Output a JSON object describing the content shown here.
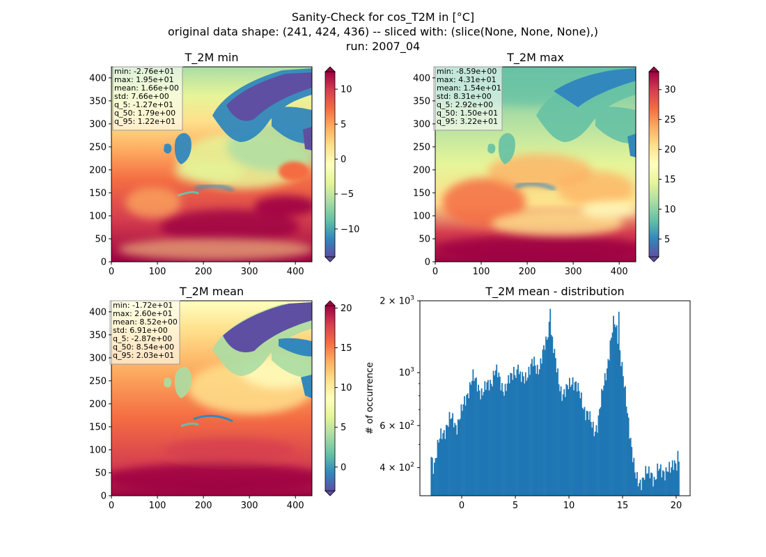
{
  "figure": {
    "title_lines": [
      "Sanity-Check for cos_T2M in [°C]",
      "original data shape: (241, 424, 436) -- sliced with: (slice(None, None, None),)",
      "run: 2007_04"
    ]
  },
  "chart_data": [
    {
      "type": "heatmap",
      "title": "T_2M min",
      "xlim": [
        0,
        436
      ],
      "ylim": [
        0,
        424
      ],
      "xticks": [
        0,
        100,
        200,
        300,
        400
      ],
      "yticks": [
        0,
        50,
        100,
        150,
        200,
        250,
        300,
        350,
        400
      ],
      "colormap": "Spectral_r",
      "extend": "both",
      "colorbar": {
        "range": [
          -14,
          12.5
        ],
        "ticks": [
          -10,
          -5,
          0,
          5,
          10
        ],
        "tick_labels": [
          "−10",
          "−5",
          "0",
          "5",
          "10"
        ]
      },
      "stats": [
        "min: -2.76e+01",
        "max: 1.95e+01",
        "mean: 1.66e+00",
        "std: 7.66e+00",
        "q_5: -1.27e+01",
        "q_50: 1.79e+00",
        "q_95: 1.22e+01"
      ]
    },
    {
      "type": "heatmap",
      "title": "T_2M max",
      "xlim": [
        0,
        436
      ],
      "ylim": [
        0,
        424
      ],
      "xticks": [
        0,
        100,
        200,
        300,
        400
      ],
      "yticks": [
        0,
        50,
        100,
        150,
        200,
        250,
        300,
        350,
        400
      ],
      "colormap": "Spectral_r",
      "extend": "both",
      "colorbar": {
        "range": [
          2,
          33
        ],
        "ticks": [
          5,
          10,
          15,
          20,
          25,
          30
        ],
        "tick_labels": [
          "5",
          "10",
          "15",
          "20",
          "25",
          "30"
        ]
      },
      "stats": [
        "min: -8.59e+00",
        "max: 4.31e+01",
        "mean: 1.54e+01",
        "std: 8.31e+00",
        "q_5: 2.92e+00",
        "q_50: 1.50e+01",
        "q_95: 3.22e+01"
      ]
    },
    {
      "type": "heatmap",
      "title": "T_2M mean",
      "xlim": [
        0,
        436
      ],
      "ylim": [
        0,
        424
      ],
      "xticks": [
        0,
        100,
        200,
        300,
        400
      ],
      "yticks": [
        0,
        50,
        100,
        150,
        200,
        250,
        300,
        350,
        400
      ],
      "colormap": "Spectral_r",
      "extend": "both",
      "colorbar": {
        "range": [
          -3,
          20.3
        ],
        "ticks": [
          0,
          5,
          10,
          15,
          20
        ],
        "tick_labels": [
          "0",
          "5",
          "10",
          "15",
          "20"
        ]
      },
      "stats": [
        "min: -1.72e+01",
        "max: 2.60e+01",
        "mean: 8.52e+00",
        "std: 6.91e+00",
        "q_5: -2.87e+00",
        "q_50: 8.54e+00",
        "q_95: 2.03e+01"
      ]
    },
    {
      "type": "bar",
      "title": "T_2M mean - distribution",
      "ylabel": "# of occurrence",
      "xlim": [
        -3.9,
        21.3
      ],
      "ylim": [
        305,
        2000
      ],
      "yscale": "log",
      "xticks": [
        0,
        5,
        10,
        15,
        20
      ],
      "yticks": [
        400,
        600,
        1000,
        2000
      ],
      "ytick_labels": [
        [
          "4",
          "2"
        ],
        [
          "6",
          "2"
        ],
        [
          "10",
          "3"
        ],
        [
          "2",
          "3"
        ]
      ],
      "bar_color": "#1f77b4",
      "bin_start": -2.9,
      "bin_width": 0.1,
      "anchors": [
        [
          -2.9,
          450
        ],
        [
          -2.6,
          410
        ],
        [
          -2.3,
          480
        ],
        [
          -2.0,
          530
        ],
        [
          -1.7,
          560
        ],
        [
          -1.4,
          610
        ],
        [
          -1.1,
          640
        ],
        [
          -0.8,
          620
        ],
        [
          -0.5,
          600
        ],
        [
          -0.2,
          660
        ],
        [
          0.1,
          700
        ],
        [
          0.4,
          780
        ],
        [
          0.7,
          880
        ],
        [
          1.0,
          960
        ],
        [
          1.3,
          900
        ],
        [
          1.6,
          870
        ],
        [
          1.9,
          830
        ],
        [
          2.2,
          850
        ],
        [
          2.5,
          890
        ],
        [
          2.8,
          940
        ],
        [
          3.1,
          1030
        ],
        [
          3.4,
          960
        ],
        [
          3.7,
          890
        ],
        [
          4.0,
          860
        ],
        [
          4.3,
          890
        ],
        [
          4.6,
          950
        ],
        [
          4.9,
          1050
        ],
        [
          5.2,
          980
        ],
        [
          5.5,
          930
        ],
        [
          5.8,
          960
        ],
        [
          6.1,
          1000
        ],
        [
          6.4,
          1030
        ],
        [
          6.7,
          1100
        ],
        [
          7.0,
          1050
        ],
        [
          7.3,
          1080
        ],
        [
          7.6,
          1200
        ],
        [
          7.9,
          1350
        ],
        [
          8.2,
          1650
        ],
        [
          8.5,
          1300
        ],
        [
          8.8,
          1050
        ],
        [
          9.1,
          900
        ],
        [
          9.4,
          820
        ],
        [
          9.7,
          820
        ],
        [
          10.0,
          880
        ],
        [
          10.3,
          950
        ],
        [
          10.6,
          900
        ],
        [
          10.9,
          820
        ],
        [
          11.2,
          770
        ],
        [
          11.5,
          700
        ],
        [
          11.8,
          660
        ],
        [
          12.1,
          600
        ],
        [
          12.4,
          580
        ],
        [
          12.7,
          620
        ],
        [
          13.0,
          750
        ],
        [
          13.3,
          920
        ],
        [
          13.6,
          1100
        ],
        [
          13.9,
          1350
        ],
        [
          14.2,
          1620
        ],
        [
          14.5,
          1500
        ],
        [
          14.8,
          1200
        ],
        [
          15.1,
          900
        ],
        [
          15.4,
          700
        ],
        [
          15.7,
          560
        ],
        [
          16.0,
          430
        ],
        [
          16.2,
          360
        ],
        [
          16.5,
          340
        ],
        [
          16.8,
          360
        ],
        [
          17.1,
          380
        ],
        [
          17.4,
          370
        ],
        [
          17.7,
          380
        ],
        [
          18.0,
          360
        ],
        [
          18.3,
          390
        ],
        [
          18.6,
          380
        ],
        [
          18.9,
          390
        ],
        [
          19.2,
          400
        ],
        [
          19.5,
          380
        ],
        [
          19.8,
          420
        ],
        [
          20.1,
          430
        ],
        [
          20.2,
          440
        ]
      ],
      "spikes": [
        [
          8.2,
          1850
        ],
        [
          14.6,
          1800
        ],
        [
          13.9,
          1400
        ],
        [
          5.2,
          1080
        ],
        [
          20.1,
          470
        ]
      ]
    }
  ]
}
